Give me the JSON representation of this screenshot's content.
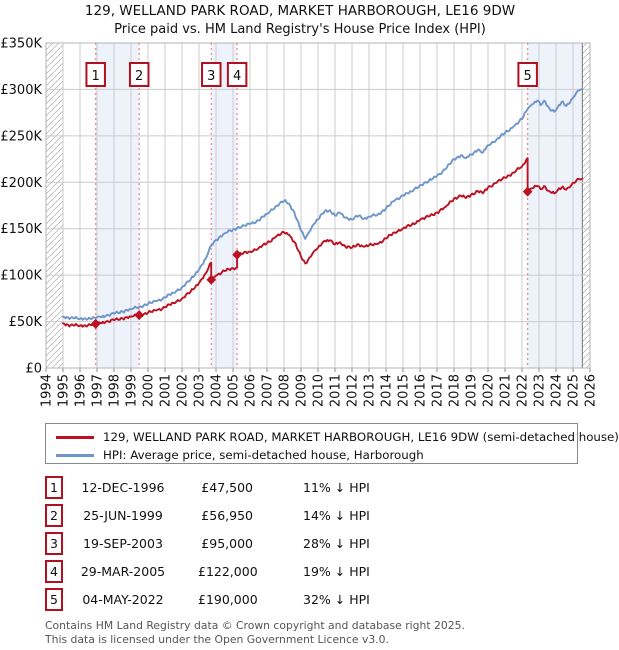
{
  "title": "129, WELLAND PARK ROAD, MARKET HARBOROUGH, LE16 9DW",
  "subtitle": "Price paid vs. HM Land Registry's House Price Index (HPI)",
  "legend": {
    "series": [
      {
        "label": "129, WELLAND PARK ROAD, MARKET HARBOROUGH, LE16 9DW (semi-detached house)",
        "color": "#bb1122"
      },
      {
        "label": "HPI: Average price, semi-detached house, Harborough",
        "color": "#6e96c8"
      }
    ]
  },
  "transactions": [
    {
      "num": "1",
      "date": "12-DEC-1996",
      "price": "£47,500",
      "vs_hpi": "11% ↓ HPI"
    },
    {
      "num": "2",
      "date": "25-JUN-1999",
      "price": "£56,950",
      "vs_hpi": "14% ↓ HPI"
    },
    {
      "num": "3",
      "date": "19-SEP-2003",
      "price": "£95,000",
      "vs_hpi": "28% ↓ HPI"
    },
    {
      "num": "4",
      "date": "29-MAR-2005",
      "price": "£122,000",
      "vs_hpi": "19% ↓ HPI"
    },
    {
      "num": "5",
      "date": "04-MAY-2022",
      "price": "£190,000",
      "vs_hpi": "32% ↓ HPI"
    }
  ],
  "footer": {
    "line1": "Contains HM Land Registry data © Crown copyright and database right 2025.",
    "line2": "This data is licensed under the Open Government Licence v3.0."
  },
  "chart_data": {
    "type": "line",
    "title": "129, WELLAND PARK ROAD, MARKET HARBOROUGH, LE16 9DW",
    "subtitle": "Price paid vs. HM Land Registry's House Price Index (HPI)",
    "units": "GBP_thousands",
    "ylim": [
      0,
      350
    ],
    "xlim": [
      1994,
      2026
    ],
    "grid": true,
    "y_ticks": [
      "£0",
      "£50K",
      "£100K",
      "£150K",
      "£200K",
      "£250K",
      "£300K",
      "£350K"
    ],
    "x_ticks": [
      "1994",
      "1995",
      "1996",
      "1997",
      "1998",
      "1999",
      "2000",
      "2001",
      "2002",
      "2003",
      "2004",
      "2005",
      "2006",
      "2007",
      "2008",
      "2009",
      "2010",
      "2011",
      "2012",
      "2013",
      "2014",
      "2015",
      "2016",
      "2017",
      "2018",
      "2019",
      "2020",
      "2021",
      "2022",
      "2023",
      "2024",
      "2025",
      "2026"
    ],
    "colors": {
      "price_line": "#bb1122",
      "hpi_line": "#6e96c8",
      "sale_vline": "#ee8888",
      "band_fill": "#eef2fb",
      "grid_line": "#cccccc",
      "hatch_line": "#bbbbbb",
      "data_edge": "#777777",
      "marker_box_border": "#b01020"
    },
    "shaded_bands": [
      [
        1996.92,
        1999.48
      ],
      [
        2003.72,
        2005.24
      ],
      [
        2022.33,
        2025.55
      ]
    ],
    "hatched_bands": [
      [
        1994,
        1995
      ],
      [
        2025.55,
        2026
      ]
    ],
    "sales": [
      {
        "n": "1",
        "x": 1996.92,
        "price_k": 47.5
      },
      {
        "n": "2",
        "x": 1999.48,
        "price_k": 56.95
      },
      {
        "n": "3",
        "x": 2003.72,
        "price_k": 95
      },
      {
        "n": "4",
        "x": 2005.24,
        "price_k": 122
      },
      {
        "n": "5",
        "x": 2022.33,
        "price_k": 190
      }
    ],
    "series": [
      {
        "name": "HPI: Average price, semi-detached house, Harborough",
        "color": "#6e96c8",
        "points": [
          [
            1995.0,
            55
          ],
          [
            1995.3,
            54.5
          ],
          [
            1995.6,
            53.8
          ],
          [
            1996.0,
            53
          ],
          [
            1996.3,
            53.5
          ],
          [
            1996.6,
            53.2
          ],
          [
            1996.92,
            53.5
          ],
          [
            1997.2,
            55
          ],
          [
            1997.5,
            56
          ],
          [
            1998.0,
            58.5
          ],
          [
            1998.5,
            61
          ],
          [
            1999.0,
            63.5
          ],
          [
            1999.48,
            66
          ],
          [
            1999.75,
            67.5
          ],
          [
            2000.0,
            69
          ],
          [
            2000.5,
            72
          ],
          [
            2001.0,
            76
          ],
          [
            2001.5,
            81
          ],
          [
            2002.0,
            87
          ],
          [
            2002.5,
            95
          ],
          [
            2003.0,
            106
          ],
          [
            2003.4,
            118
          ],
          [
            2003.72,
            132
          ],
          [
            2004.0,
            138
          ],
          [
            2004.5,
            145
          ],
          [
            2005.0,
            149
          ],
          [
            2005.24,
            151
          ],
          [
            2005.5,
            152
          ],
          [
            2006.0,
            155
          ],
          [
            2006.5,
            159
          ],
          [
            2007.0,
            166
          ],
          [
            2007.5,
            174
          ],
          [
            2008.0,
            180
          ],
          [
            2008.3,
            177
          ],
          [
            2008.6,
            168
          ],
          [
            2009.0,
            148
          ],
          [
            2009.25,
            139
          ],
          [
            2009.5,
            147
          ],
          [
            2009.75,
            155
          ],
          [
            2010.0,
            160
          ],
          [
            2010.4,
            169
          ],
          [
            2010.7,
            170
          ],
          [
            2011.0,
            164
          ],
          [
            2011.3,
            167
          ],
          [
            2011.6,
            162
          ],
          [
            2012.0,
            160
          ],
          [
            2012.4,
            164
          ],
          [
            2012.7,
            161
          ],
          [
            2013.0,
            163
          ],
          [
            2013.5,
            165
          ],
          [
            2014.0,
            172
          ],
          [
            2014.5,
            180
          ],
          [
            2015.0,
            186
          ],
          [
            2015.5,
            190
          ],
          [
            2016.0,
            197
          ],
          [
            2016.5,
            201
          ],
          [
            2017.0,
            207
          ],
          [
            2017.5,
            214
          ],
          [
            2018.0,
            225
          ],
          [
            2018.4,
            229
          ],
          [
            2018.7,
            226
          ],
          [
            2019.0,
            230
          ],
          [
            2019.4,
            235
          ],
          [
            2019.7,
            232
          ],
          [
            2020.0,
            240
          ],
          [
            2020.5,
            246
          ],
          [
            2021.0,
            253
          ],
          [
            2021.5,
            260
          ],
          [
            2022.0,
            268
          ],
          [
            2022.33,
            279
          ],
          [
            2022.6,
            284
          ],
          [
            2022.9,
            288
          ],
          [
            2023.1,
            283
          ],
          [
            2023.3,
            288
          ],
          [
            2023.6,
            280
          ],
          [
            2023.9,
            276
          ],
          [
            2024.1,
            281
          ],
          [
            2024.4,
            287
          ],
          [
            2024.6,
            282
          ],
          [
            2024.9,
            289
          ],
          [
            2025.1,
            293
          ],
          [
            2025.35,
            299
          ],
          [
            2025.55,
            300
          ]
        ]
      },
      {
        "name": "129, WELLAND PARK ROAD, MARKET HARBOROUGH, LE16 9DW (semi-detached house)",
        "color": "#bb1122",
        "points": [
          [
            1995.0,
            48
          ],
          [
            1995.3,
            46.5
          ],
          [
            1995.6,
            46
          ],
          [
            1996.0,
            45.5
          ],
          [
            1996.3,
            46
          ],
          [
            1996.6,
            46.5
          ],
          [
            1996.92,
            47.5
          ],
          [
            1997.2,
            48.5
          ],
          [
            1997.5,
            49.5
          ],
          [
            1998.0,
            51.5
          ],
          [
            1998.5,
            53.5
          ],
          [
            1999.0,
            55.5
          ],
          [
            1999.48,
            56.95
          ],
          [
            1999.75,
            58
          ],
          [
            2000.0,
            59.5
          ],
          [
            2000.5,
            62
          ],
          [
            2001.0,
            65.5
          ],
          [
            2001.5,
            70
          ],
          [
            2002.0,
            75
          ],
          [
            2002.5,
            82
          ],
          [
            2003.0,
            91.5
          ],
          [
            2003.4,
            102
          ],
          [
            2003.72,
            113.5
          ],
          [
            2003.72,
            95
          ],
          [
            2004.0,
            99.5
          ],
          [
            2004.5,
            104.5
          ],
          [
            2005.0,
            107.5
          ],
          [
            2005.24,
            108.5
          ],
          [
            2005.24,
            122
          ],
          [
            2005.5,
            123
          ],
          [
            2006.0,
            125.5
          ],
          [
            2006.5,
            129
          ],
          [
            2007.0,
            134.5
          ],
          [
            2007.5,
            141
          ],
          [
            2008.0,
            146
          ],
          [
            2008.3,
            143.5
          ],
          [
            2008.6,
            136
          ],
          [
            2009.0,
            120
          ],
          [
            2009.25,
            112.5
          ],
          [
            2009.5,
            119
          ],
          [
            2009.75,
            125.5
          ],
          [
            2010.0,
            129.5
          ],
          [
            2010.4,
            137
          ],
          [
            2010.7,
            137.5
          ],
          [
            2011.0,
            133
          ],
          [
            2011.3,
            135.5
          ],
          [
            2011.6,
            131
          ],
          [
            2012.0,
            129.5
          ],
          [
            2012.4,
            133
          ],
          [
            2012.7,
            130.5
          ],
          [
            2013.0,
            132
          ],
          [
            2013.5,
            133.5
          ],
          [
            2014.0,
            139.5
          ],
          [
            2014.5,
            146
          ],
          [
            2015.0,
            150.5
          ],
          [
            2015.5,
            154
          ],
          [
            2016.0,
            159.5
          ],
          [
            2016.5,
            163
          ],
          [
            2017.0,
            167.5
          ],
          [
            2017.5,
            173.5
          ],
          [
            2018.0,
            182.5
          ],
          [
            2018.4,
            185.5
          ],
          [
            2018.7,
            183
          ],
          [
            2019.0,
            186.5
          ],
          [
            2019.4,
            190.5
          ],
          [
            2019.7,
            188
          ],
          [
            2020.0,
            194.5
          ],
          [
            2020.5,
            199.5
          ],
          [
            2021.0,
            205
          ],
          [
            2021.5,
            210.5
          ],
          [
            2022.0,
            217
          ],
          [
            2022.33,
            226
          ],
          [
            2022.33,
            190
          ],
          [
            2022.6,
            193.5
          ],
          [
            2022.9,
            196
          ],
          [
            2023.1,
            192.5
          ],
          [
            2023.3,
            196
          ],
          [
            2023.6,
            190.5
          ],
          [
            2023.9,
            188
          ],
          [
            2024.1,
            191.5
          ],
          [
            2024.4,
            195.5
          ],
          [
            2024.6,
            192
          ],
          [
            2024.9,
            197
          ],
          [
            2025.1,
            199.5
          ],
          [
            2025.35,
            203.5
          ],
          [
            2025.55,
            204
          ]
        ]
      }
    ]
  }
}
